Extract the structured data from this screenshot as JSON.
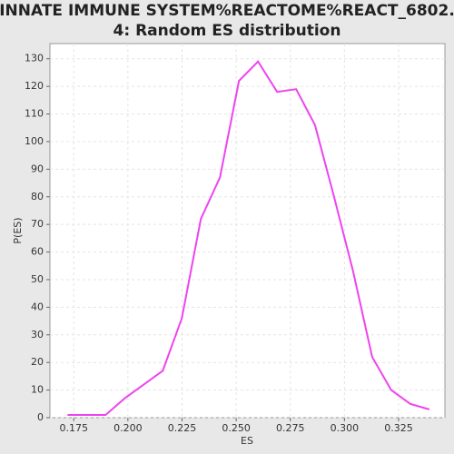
{
  "chart_data": {
    "type": "line",
    "title": [
      "INNATE IMMUNE SYSTEM%REACTOME%REACT_6802.",
      "4: Random ES distribution"
    ],
    "x_label": "ES",
    "y_label": "P(ES)",
    "x": [
      0.1721,
      0.1809,
      0.1897,
      0.1985,
      0.2073,
      0.2161,
      0.2249,
      0.2337,
      0.2425,
      0.2513,
      0.2601,
      0.2689,
      0.2777,
      0.2864,
      0.2952,
      0.304,
      0.3128,
      0.3216,
      0.3304,
      0.3392
    ],
    "series": [
      {
        "name": "P(ES)",
        "color": "#ee44ee",
        "values": [
          1,
          1,
          1,
          7,
          12,
          17,
          36,
          72,
          87,
          122,
          129,
          118,
          119,
          106,
          80,
          53,
          22,
          10,
          5,
          3
        ]
      }
    ],
    "xlim": [
      0.164,
      0.3464
    ],
    "ylim": [
      0,
      135.5
    ],
    "xticks": [
      0.175,
      {
        "value": 0.2,
        "label": "0.200"
      },
      0.225,
      {
        "value": 0.25,
        "label": "0.250"
      },
      0.275,
      {
        "value": 0.3,
        "label": "0.300"
      },
      0.325
    ],
    "yticks": [
      0,
      10,
      20,
      30,
      40,
      50,
      60,
      70,
      80,
      90,
      100,
      110,
      120,
      130
    ],
    "grid": true
  }
}
